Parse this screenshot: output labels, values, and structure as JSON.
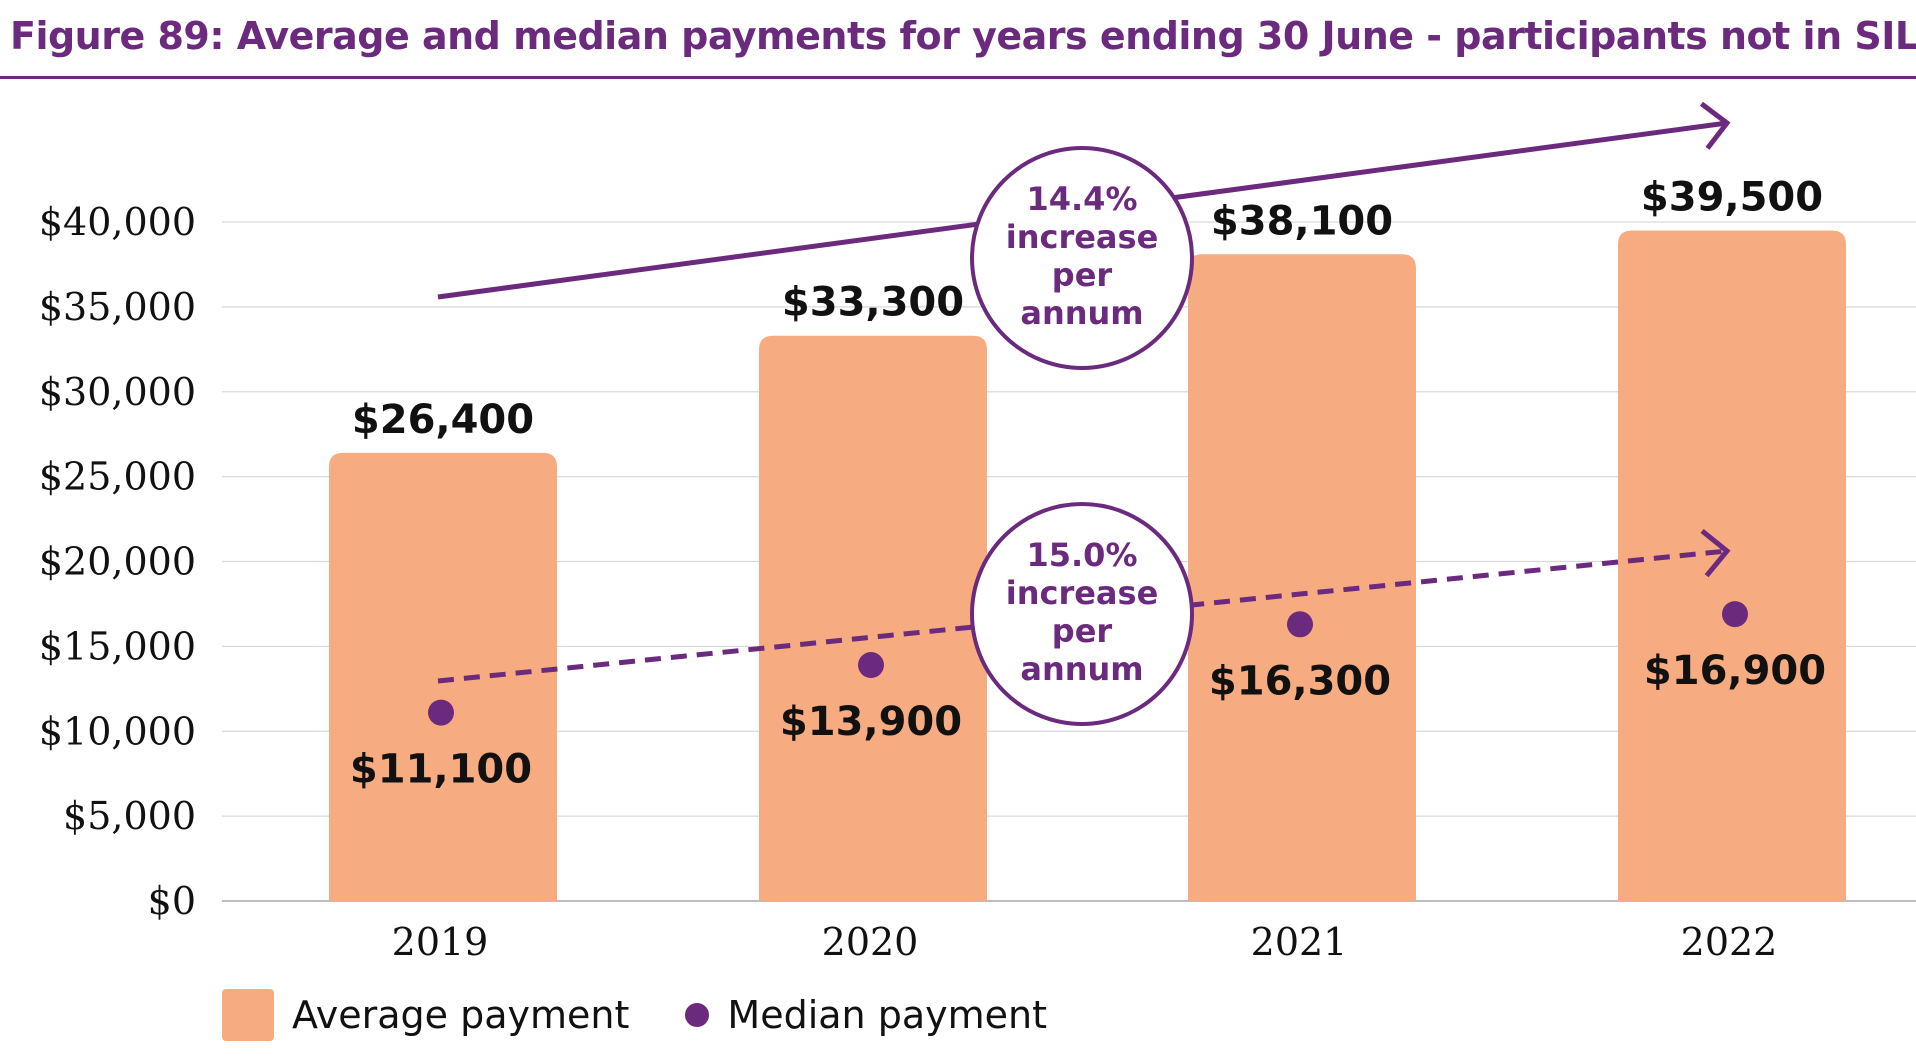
{
  "chart_data": {
    "type": "bar",
    "title": "Figure 89: Average and median payments for years ending 30 June - participants not in SIL",
    "categories": [
      "2019",
      "2020",
      "2021",
      "2022"
    ],
    "series": [
      {
        "name": "Average payment",
        "type": "bar",
        "color": "#f7ab80",
        "values": [
          26400,
          33300,
          38100,
          39500
        ],
        "labels": [
          "$26,400",
          "$33,300",
          "$38,100",
          "$39,500"
        ]
      },
      {
        "name": "Median payment",
        "type": "scatter",
        "color": "#6b2a7e",
        "values": [
          11100,
          13900,
          16300,
          16900
        ],
        "labels": [
          "$11,100",
          "$13,900",
          "$16,300",
          "$16,900"
        ]
      }
    ],
    "ylim": [
      0,
      40000
    ],
    "y_ticks": [
      0,
      5000,
      10000,
      15000,
      20000,
      25000,
      30000,
      35000,
      40000
    ],
    "y_tick_labels": [
      "$0",
      "$5,000",
      "$10,000",
      "$15,000",
      "$20,000",
      "$25,000",
      "$30,000",
      "$35,000",
      "$40,000"
    ],
    "xlabel": "",
    "ylabel": "",
    "grid": true,
    "legend_position": "bottom-left",
    "annotations": [
      {
        "text_lines": [
          "14.4%",
          "increase",
          "per",
          "annum"
        ],
        "applies_to": "Average payment",
        "style": "solid-arrow"
      },
      {
        "text_lines": [
          "15.0%",
          "increase",
          "per",
          "annum"
        ],
        "applies_to": "Median payment",
        "style": "dashed-arrow"
      }
    ],
    "accent_color": "#6b2a7e"
  }
}
